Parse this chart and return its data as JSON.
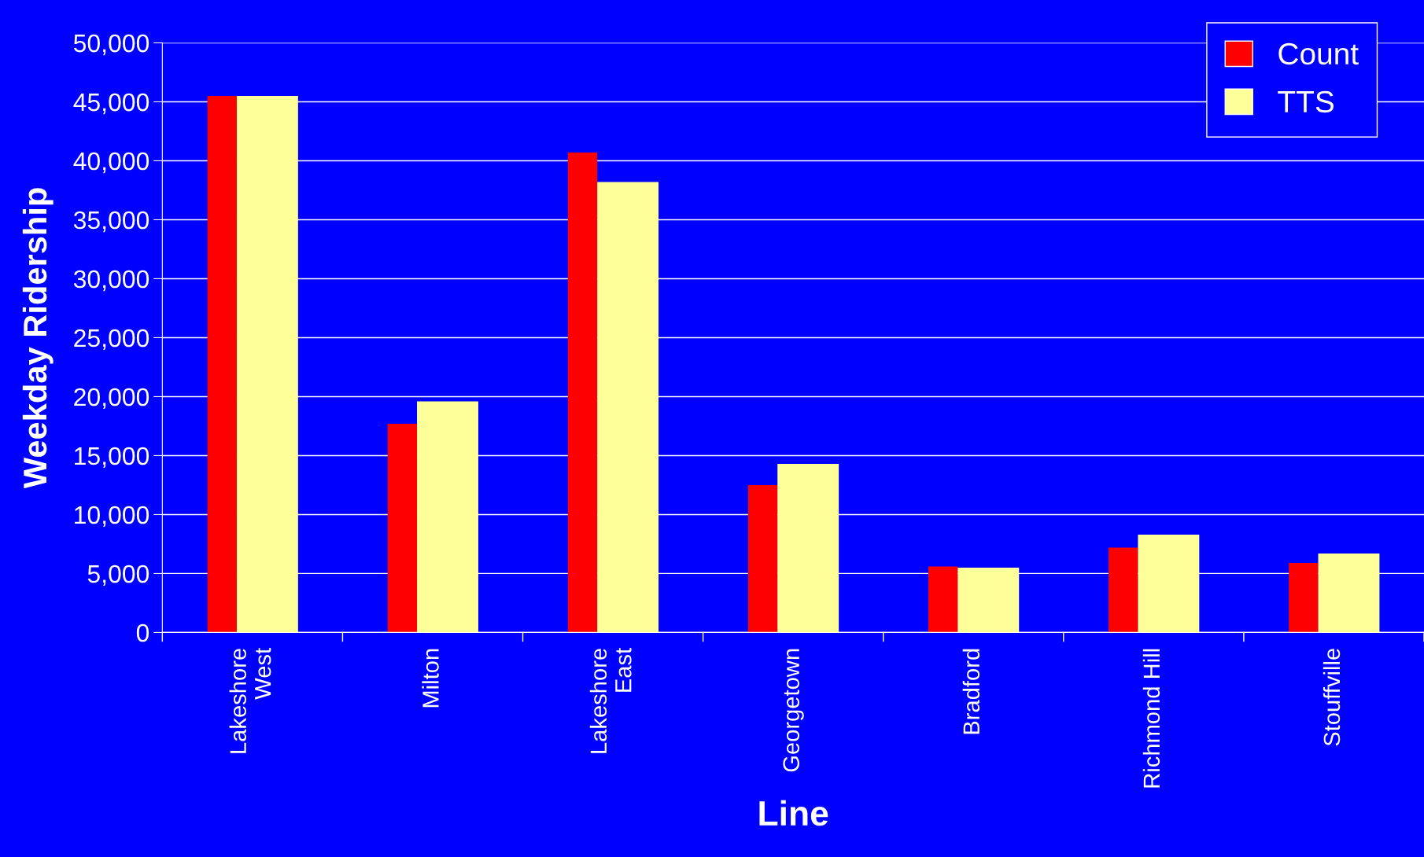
{
  "chart_data": {
    "type": "bar",
    "xlabel": "Line",
    "ylabel": "Weekday Ridership",
    "categories": [
      "Lakeshore\nWest",
      "Milton",
      "Lakeshore\nEast",
      "Georgetown",
      "Bradford",
      "Richmond Hill",
      "Stouffville"
    ],
    "series": [
      {
        "name": "Count",
        "color": "#ff0000",
        "values": [
          45500,
          17700,
          40700,
          12500,
          5600,
          7200,
          5900
        ]
      },
      {
        "name": "TTS",
        "color": "#ffff99",
        "values": [
          45500,
          19600,
          38200,
          14300,
          5500,
          8300,
          6700
        ]
      }
    ],
    "ylim": [
      0,
      50000
    ],
    "yticks": [
      {
        "value": 0,
        "label": "0"
      },
      {
        "value": 5000,
        "label": "5,000"
      },
      {
        "value": 10000,
        "label": "10,000"
      },
      {
        "value": 15000,
        "label": "15,000"
      },
      {
        "value": 20000,
        "label": "20,000"
      },
      {
        "value": 25000,
        "label": "25,000"
      },
      {
        "value": 30000,
        "label": "30,000"
      },
      {
        "value": 35000,
        "label": "35,000"
      },
      {
        "value": 40000,
        "label": "40,000"
      },
      {
        "value": 45000,
        "label": "45,000"
      },
      {
        "value": 50000,
        "label": "50,000"
      }
    ],
    "grid": "y",
    "legend": "top right"
  }
}
